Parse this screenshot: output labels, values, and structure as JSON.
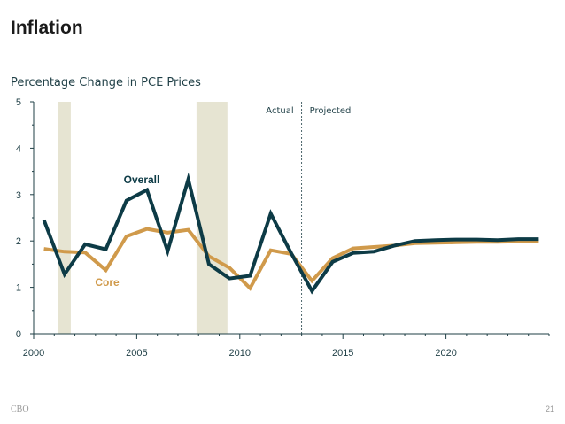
{
  "slide": {
    "title": "Inflation",
    "footer_left": "CBO",
    "page_number": "21"
  },
  "chart_data": {
    "type": "line",
    "title": "Percentage Change in PCE Prices",
    "xlabel": "",
    "ylabel": "",
    "xlim": [
      2000,
      2025
    ],
    "ylim": [
      0,
      5
    ],
    "x_ticks": [
      2000,
      2005,
      2010,
      2015,
      2020
    ],
    "y_ticks": [
      0,
      1,
      2,
      3,
      4,
      5
    ],
    "grid": false,
    "divider_year": 2013,
    "annotations": {
      "left": "Actual",
      "right": "Projected"
    },
    "recession_bands": [
      [
        2001.2,
        2001.8
      ],
      [
        2007.9,
        2009.4
      ]
    ],
    "colors": {
      "Overall": "#0d3b46",
      "Core": "#d09a4b",
      "band": "#e6e4d2",
      "axis": "#1f3f46"
    },
    "series": [
      {
        "name": "Overall",
        "x": [
          2000.5,
          2001.5,
          2002.5,
          2003.5,
          2004.5,
          2005.5,
          2006.5,
          2007.5,
          2008.5,
          2009.5,
          2010.5,
          2011.5,
          2012.5,
          2013.5,
          2014.5,
          2015.5,
          2016.5,
          2017.5,
          2018.5,
          2019.5,
          2020.5,
          2021.5,
          2022.5,
          2023.5,
          2024.5
        ],
        "values": [
          2.45,
          1.28,
          1.93,
          1.82,
          2.87,
          3.1,
          1.78,
          3.33,
          1.5,
          1.19,
          1.25,
          2.59,
          1.73,
          0.92,
          1.55,
          1.74,
          1.77,
          1.9,
          2.0,
          2.02,
          2.03,
          2.03,
          2.02,
          2.04,
          2.04
        ]
      },
      {
        "name": "Core",
        "x": [
          2000.5,
          2001.5,
          2002.5,
          2003.5,
          2004.5,
          2005.5,
          2006.5,
          2007.5,
          2008.5,
          2009.5,
          2010.5,
          2011.5,
          2012.5,
          2013.5,
          2014.5,
          2015.5,
          2016.5,
          2017.5,
          2018.5,
          2019.5,
          2020.5,
          2021.5,
          2022.5,
          2023.5,
          2024.5
        ],
        "values": [
          1.83,
          1.77,
          1.75,
          1.37,
          2.1,
          2.26,
          2.18,
          2.24,
          1.67,
          1.42,
          0.98,
          1.8,
          1.72,
          1.14,
          1.63,
          1.84,
          1.87,
          1.9,
          1.95,
          1.96,
          1.97,
          1.98,
          1.98,
          1.99,
          2.0
        ]
      }
    ]
  }
}
